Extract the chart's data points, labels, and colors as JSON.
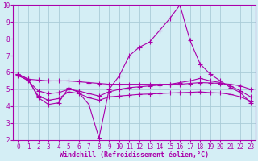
{
  "xlabel": "Windchill (Refroidissement éolien,°C)",
  "bg_color": "#d4eef5",
  "grid_color": "#aaccd8",
  "line_color": "#aa00aa",
  "xlim": [
    -0.5,
    23.5
  ],
  "ylim": [
    2,
    10
  ],
  "xticks": [
    0,
    1,
    2,
    3,
    4,
    5,
    6,
    7,
    8,
    9,
    10,
    11,
    12,
    13,
    14,
    15,
    16,
    17,
    18,
    19,
    20,
    21,
    22,
    23
  ],
  "yticks": [
    2,
    3,
    4,
    5,
    6,
    7,
    8,
    9,
    10
  ],
  "line1_x": [
    0,
    1,
    2,
    3,
    4,
    5,
    6,
    7,
    8,
    9,
    10,
    11,
    12,
    13,
    14,
    15,
    16,
    17,
    18,
    19,
    20,
    21,
    22,
    23
  ],
  "line1_y": [
    5.9,
    5.6,
    4.5,
    4.1,
    4.2,
    5.1,
    4.8,
    4.1,
    2.1,
    5.0,
    5.8,
    7.0,
    7.5,
    7.8,
    8.5,
    9.2,
    10.0,
    7.9,
    6.5,
    5.9,
    5.5,
    5.1,
    4.8,
    4.2
  ],
  "line2_x": [
    0,
    1,
    2,
    3,
    4,
    5,
    6,
    7,
    8,
    9,
    10,
    11,
    12,
    13,
    14,
    15,
    16,
    17,
    18,
    19,
    20,
    21,
    22,
    23
  ],
  "line2_y": [
    5.85,
    5.5,
    4.9,
    4.75,
    4.8,
    5.0,
    4.9,
    4.75,
    4.6,
    4.85,
    5.0,
    5.1,
    5.15,
    5.2,
    5.25,
    5.3,
    5.4,
    5.5,
    5.65,
    5.5,
    5.4,
    5.2,
    4.9,
    4.55
  ],
  "line3_x": [
    0,
    1,
    2,
    3,
    4,
    5,
    6,
    7,
    8,
    9,
    10,
    11,
    12,
    13,
    14,
    15,
    16,
    17,
    18,
    19,
    20,
    21,
    22,
    23
  ],
  "line3_y": [
    5.8,
    5.55,
    4.6,
    4.35,
    4.45,
    4.85,
    4.75,
    4.5,
    4.35,
    4.55,
    4.6,
    4.65,
    4.7,
    4.72,
    4.75,
    4.78,
    4.8,
    4.82,
    4.85,
    4.8,
    4.78,
    4.7,
    4.55,
    4.3
  ],
  "line4_x": [
    0,
    1,
    2,
    3,
    4,
    5,
    6,
    7,
    8,
    9,
    10,
    11,
    12,
    13,
    14,
    15,
    16,
    17,
    18,
    19,
    20,
    21,
    22,
    23
  ],
  "line4_y": [
    5.9,
    5.6,
    5.55,
    5.5,
    5.5,
    5.5,
    5.45,
    5.4,
    5.35,
    5.3,
    5.3,
    5.3,
    5.3,
    5.3,
    5.3,
    5.3,
    5.3,
    5.35,
    5.4,
    5.38,
    5.35,
    5.3,
    5.2,
    5.0
  ]
}
